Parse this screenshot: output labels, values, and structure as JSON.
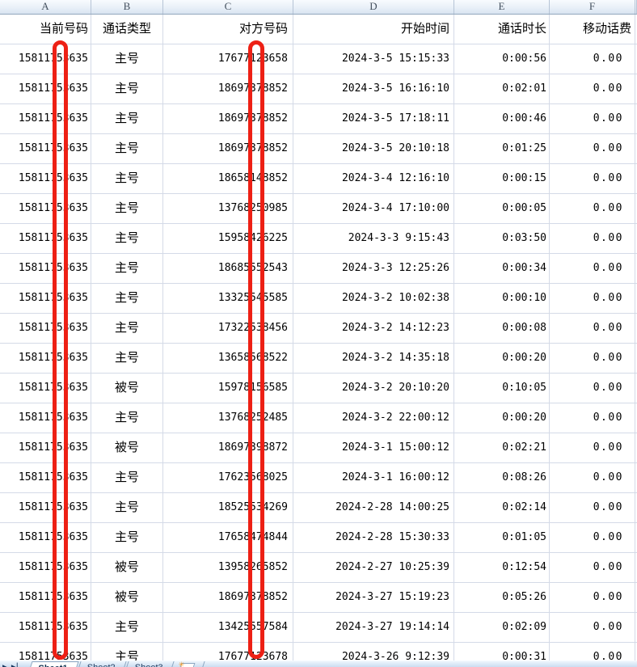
{
  "column_strip": {
    "letters": [
      "A",
      "B",
      "C",
      "D",
      "E",
      "F"
    ]
  },
  "table": {
    "field_headers": {
      "a": "当前号码",
      "b": "通话类型",
      "c": "对方号码",
      "d": "开始时间",
      "e": "通话时长",
      "f": "移动话费"
    },
    "rows": [
      {
        "a": "15811753635",
        "b": "主号",
        "c": "17677123658",
        "d": "2024-3-5 15:15:33",
        "e": "0:00:56",
        "f": "0.00"
      },
      {
        "a": "15811753635",
        "b": "主号",
        "c": "18697378852",
        "d": "2024-3-5 16:16:10",
        "e": "0:02:01",
        "f": "0.00"
      },
      {
        "a": "15811753635",
        "b": "主号",
        "c": "18697378852",
        "d": "2024-3-5 17:18:11",
        "e": "0:00:46",
        "f": "0.00"
      },
      {
        "a": "15811753635",
        "b": "主号",
        "c": "18697378852",
        "d": "2024-3-5 20:10:18",
        "e": "0:01:25",
        "f": "0.00"
      },
      {
        "a": "15811753635",
        "b": "主号",
        "c": "18658148852",
        "d": "2024-3-4 12:16:10",
        "e": "0:00:15",
        "f": "0.00"
      },
      {
        "a": "15811753635",
        "b": "主号",
        "c": "13768250985",
        "d": "2024-3-4 17:10:00",
        "e": "0:00:05",
        "f": "0.00"
      },
      {
        "a": "15811753635",
        "b": "主号",
        "c": "15958426225",
        "d": "2024-3-3 9:15:43",
        "e": "0:03:50",
        "f": "0.00"
      },
      {
        "a": "15811753635",
        "b": "主号",
        "c": "18685552543",
        "d": "2024-3-3 12:25:26",
        "e": "0:00:34",
        "f": "0.00"
      },
      {
        "a": "15811753635",
        "b": "主号",
        "c": "13325545585",
        "d": "2024-3-2 10:02:38",
        "e": "0:00:10",
        "f": "0.00"
      },
      {
        "a": "15811753635",
        "b": "主号",
        "c": "17322538456",
        "d": "2024-3-2 14:12:23",
        "e": "0:00:08",
        "f": "0.00"
      },
      {
        "a": "15811753635",
        "b": "主号",
        "c": "13658568522",
        "d": "2024-3-2 14:35:18",
        "e": "0:00:20",
        "f": "0.00"
      },
      {
        "a": "15811753635",
        "b": "被号",
        "c": "15978156585",
        "d": "2024-3-2 20:10:20",
        "e": "0:10:05",
        "f": "0.00"
      },
      {
        "a": "15811753635",
        "b": "主号",
        "c": "13768252485",
        "d": "2024-3-2 22:00:12",
        "e": "0:00:20",
        "f": "0.00"
      },
      {
        "a": "15811753635",
        "b": "被号",
        "c": "18697398872",
        "d": "2024-3-1 15:00:12",
        "e": "0:02:21",
        "f": "0.00"
      },
      {
        "a": "15811753635",
        "b": "主号",
        "c": "17623568025",
        "d": "2024-3-1 16:00:12",
        "e": "0:08:26",
        "f": "0.00"
      },
      {
        "a": "15811753635",
        "b": "主号",
        "c": "18525534269",
        "d": "2024-2-28 14:00:25",
        "e": "0:02:14",
        "f": "0.00"
      },
      {
        "a": "15811753635",
        "b": "主号",
        "c": "17658474844",
        "d": "2024-2-28 15:30:33",
        "e": "0:01:05",
        "f": "0.00"
      },
      {
        "a": "15811753635",
        "b": "被号",
        "c": "13958265852",
        "d": "2024-2-27 10:25:39",
        "e": "0:12:54",
        "f": "0.00"
      },
      {
        "a": "15811753635",
        "b": "被号",
        "c": "18697378852",
        "d": "2024-3-27 15:19:23",
        "e": "0:05:26",
        "f": "0.00"
      },
      {
        "a": "15811753635",
        "b": "主号",
        "c": "13425557584",
        "d": "2024-3-27 19:14:14",
        "e": "0:02:09",
        "f": "0.00"
      },
      {
        "a": "15811753635",
        "b": "主号",
        "c": "17677123678",
        "d": "2024-3-26 9:12:39",
        "e": "0:00:31",
        "f": "0.00"
      }
    ]
  },
  "annotations": {
    "redaction_color": "#ed2015",
    "redacted_columns": [
      "A",
      "C"
    ]
  },
  "sheet_bar": {
    "nav_buttons": [
      "▶",
      "▶▏"
    ],
    "tabs": [
      {
        "label": "Sheet1",
        "active": true
      },
      {
        "label": "Sheet2",
        "active": false
      },
      {
        "label": "Sheet3",
        "active": false
      }
    ],
    "insert_star": "✳"
  }
}
